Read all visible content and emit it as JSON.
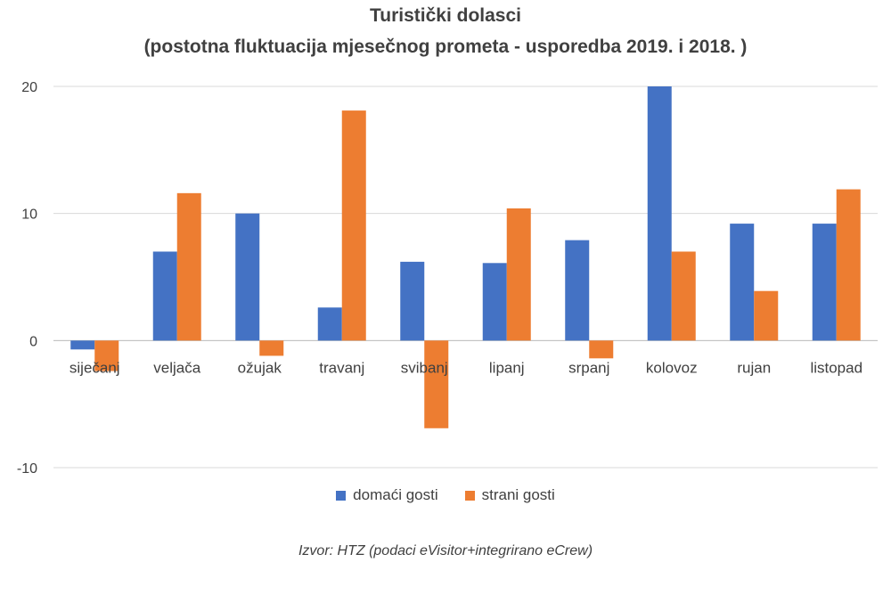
{
  "chart_data": {
    "type": "bar",
    "title": "Turistički dolasci",
    "subtitle": "(postotna fluktuacija mjesečnog prometa - usporedba 2019. i 2018. )",
    "categories": [
      "siječanj",
      "veljača",
      "ožujak",
      "travanj",
      "svibanj",
      "lipanj",
      "srpanj",
      "kolovoz",
      "rujan",
      "listopad"
    ],
    "series": [
      {
        "name": "domaći gosti",
        "color": "#4472C4",
        "values": [
          -0.7,
          7.0,
          10.0,
          2.6,
          6.2,
          6.1,
          7.9,
          20.0,
          9.2,
          9.2
        ]
      },
      {
        "name": "strani gosti",
        "color": "#ED7D31",
        "values": [
          -2.4,
          11.6,
          -1.2,
          18.1,
          -6.9,
          10.4,
          -1.4,
          7.0,
          3.9,
          11.9
        ]
      }
    ],
    "ylim": [
      -10,
      20
    ],
    "yticks": [
      "-10",
      "0",
      "10",
      "20"
    ],
    "grid": true,
    "legend_position": "bottom",
    "source": "Izvor: HTZ (podaci eVisitor+integrirano eCrew)"
  }
}
